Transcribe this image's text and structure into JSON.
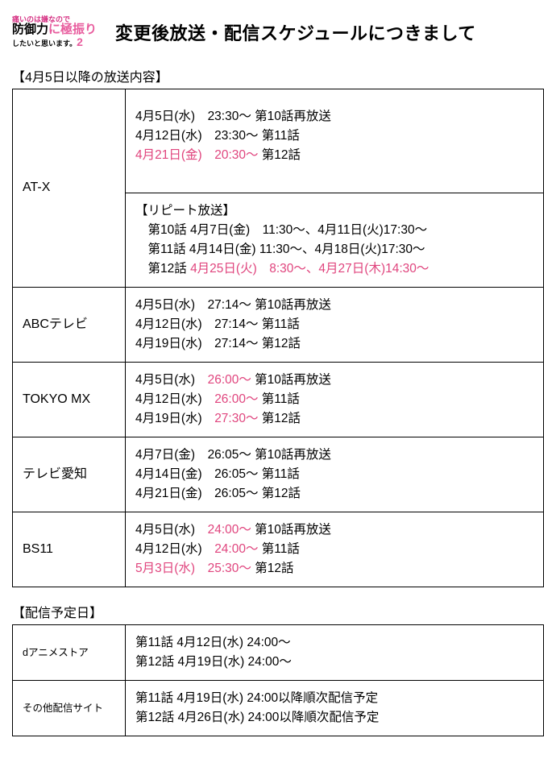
{
  "logo": {
    "line1": "痛いのは嫌なので",
    "line2_a": "防御力",
    "line2_b": "に",
    "line2_c": "極振り",
    "line3_a": "したいと",
    "line3_b": "思います。",
    "line3_c": "2"
  },
  "pageTitle": "変更後放送・配信スケジュールにつきまして",
  "broadcast": {
    "header": "【4月5日以降の放送内容】",
    "rows": [
      {
        "channel": "AT-X",
        "main": [
          {
            "date": "4月5日(水)",
            "t": "23:30～",
            "ep": "第10話再放送"
          },
          {
            "date": "4月12日(水)",
            "t": "23:30～",
            "ep": "第11話"
          },
          {
            "date": "4月21日(金)",
            "t": "20:30～",
            "ep": "第12話",
            "hlDate": true,
            "hlTime": true
          }
        ],
        "repeat": {
          "title": "【リピート放送】",
          "lines": [
            {
              "ep": "第10話",
              "a": "4月7日(金)　11:30～、",
              "b": "4月11日(火)17:30～"
            },
            {
              "ep": "第11話",
              "a": "4月14日(金) 11:30～、",
              "b": "4月18日(火)17:30～"
            },
            {
              "ep": "第12話",
              "a": "4月25日(火)　8:30～、",
              "b": "4月27日(木)14:30～",
              "hl": true
            }
          ]
        }
      },
      {
        "channel": "ABCテレビ",
        "main": [
          {
            "date": "4月5日(水)",
            "t": "27:14～",
            "ep": "第10話再放送"
          },
          {
            "date": "4月12日(水)",
            "t": "27:14～",
            "ep": "第11話"
          },
          {
            "date": "4月19日(水)",
            "t": "27:14～",
            "ep": "第12話"
          }
        ]
      },
      {
        "channel": "TOKYO MX",
        "main": [
          {
            "date": "4月5日(水)",
            "t": "26:00～",
            "ep": "第10話再放送",
            "hlTime": true
          },
          {
            "date": "4月12日(水)",
            "t": "26:00～",
            "ep": "第11話",
            "hlTime": true
          },
          {
            "date": "4月19日(水)",
            "t": "27:30～",
            "ep": "第12話",
            "hlTime": true
          }
        ]
      },
      {
        "channel": "テレビ愛知",
        "main": [
          {
            "date": "4月7日(金)",
            "t": "26:05～",
            "ep": "第10話再放送"
          },
          {
            "date": "4月14日(金)",
            "t": "26:05～",
            "ep": "第11話"
          },
          {
            "date": "4月21日(金)",
            "t": "26:05～",
            "ep": "第12話"
          }
        ]
      },
      {
        "channel": "BS11",
        "main": [
          {
            "date": "4月5日(水)",
            "t": "24:00～",
            "ep": "第10話再放送",
            "hlTime": true
          },
          {
            "date": "4月12日(水)",
            "t": "24:00～",
            "ep": "第11話",
            "hlTime": true
          },
          {
            "date": "5月3日(水)",
            "t": "25:30～",
            "ep": "第12話",
            "hlDate": true,
            "hlTime": true
          }
        ]
      }
    ]
  },
  "streaming": {
    "header": "【配信予定日】",
    "rows": [
      {
        "site": "dアニメストア",
        "lines": [
          "第11話 4月12日(水) 24:00～",
          "第12話 4月19日(水) 24:00～"
        ]
      },
      {
        "site": "その他配信サイト",
        "lines": [
          "第11話 4月19日(水) 24:00以降順次配信予定",
          "第12話 4月26日(水) 24:00以降順次配信予定"
        ]
      }
    ]
  }
}
